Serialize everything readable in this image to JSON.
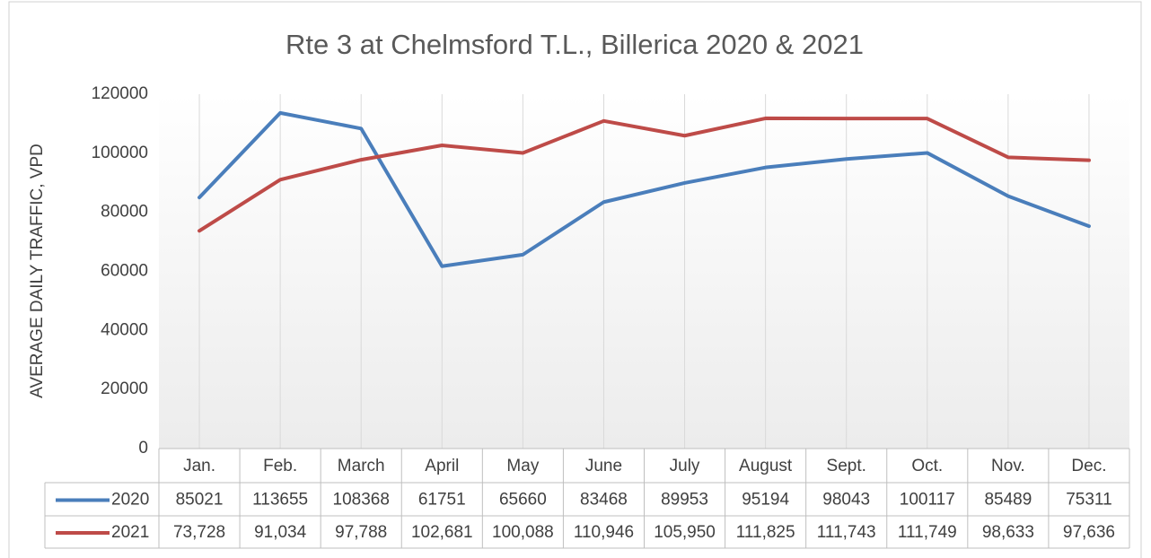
{
  "chart_data": {
    "type": "line",
    "title": "Rte 3 at Chelmsford T.L., Billerica 2020 & 2021",
    "y_label": "AVERAGE DAILY TRAFFIC, VPD",
    "categories": [
      "Jan.",
      "Feb.",
      "March",
      "April",
      "May",
      "June",
      "July",
      "August",
      "Sept.",
      "Oct.",
      "Nov.",
      "Dec."
    ],
    "series": [
      {
        "name": "2020",
        "color": "#4a7ebb",
        "values": [
          85021,
          113655,
          108368,
          61751,
          65660,
          83468,
          89953,
          95194,
          98043,
          100117,
          85489,
          75311
        ]
      },
      {
        "name": "2021",
        "color": "#be4b48",
        "values": [
          73728,
          91034,
          97788,
          102681,
          100088,
          110946,
          105950,
          111825,
          111743,
          111749,
          98633,
          97636
        ],
        "value_labels": [
          "73,728",
          "91,034",
          "97,788",
          "102,681",
          "100,088",
          "110,946",
          "105,950",
          "111,825",
          "111,743",
          "111,749",
          "98,633",
          "97,636"
        ]
      }
    ],
    "ylim": [
      0,
      120000
    ],
    "yticks": [
      0,
      20000,
      40000,
      60000,
      80000,
      100000,
      120000
    ],
    "grid": true
  }
}
